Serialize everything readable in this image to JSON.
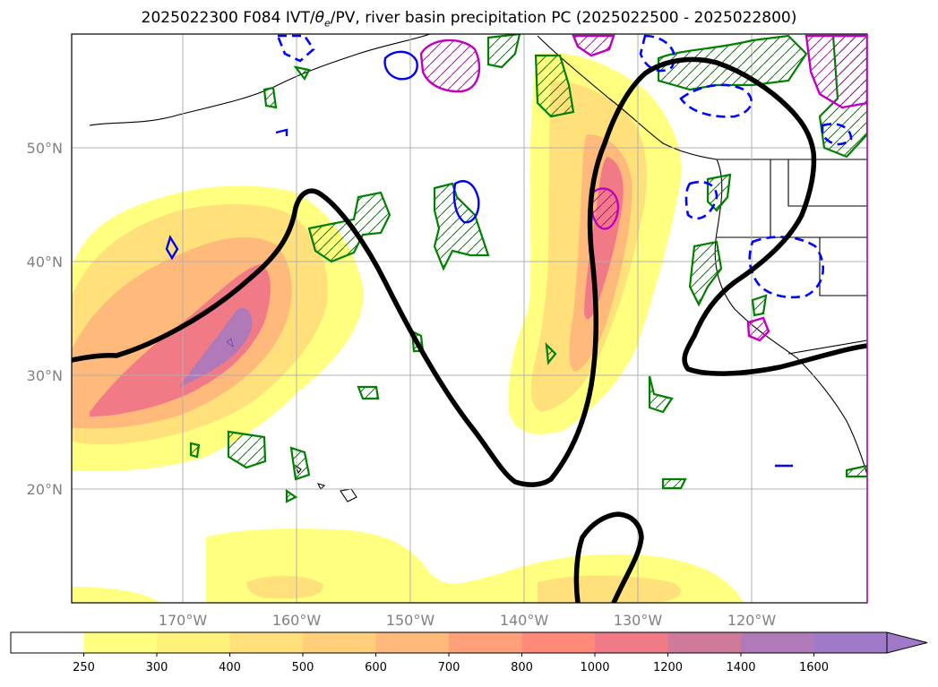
{
  "title": {
    "prefix": "2025022300 F084 IVT/",
    "theta": "θ",
    "theta_sub": "e",
    "suffix": "/PV, river basin precipitation PC (2025022500 - 2025022800)"
  },
  "lat_labels": [
    "50°N",
    "40°N",
    "30°N",
    "20°N"
  ],
  "lon_labels": [
    "170°W",
    "160°W",
    "150°W",
    "140°W",
    "130°W",
    "120°W"
  ],
  "colorbar": {
    "labels": [
      "250",
      "300",
      "400",
      "500",
      "600",
      "700",
      "800",
      "1000",
      "1200",
      "1400",
      "1600"
    ],
    "colors": [
      "#ffffff",
      "#ffff80",
      "#fff27a",
      "#ffe07a",
      "#ffcf7a",
      "#ffb97a",
      "#ffa07a",
      "#ff8a7a",
      "#f07a86",
      "#d07a9a",
      "#b07ab8",
      "#a07ac8"
    ]
  },
  "colors": {
    "ivt_low": "#ffff80",
    "ivt_mid": "#ffcf7a",
    "ivt_high": "#f08080",
    "ivt_max": "#b07ab8",
    "pv_contour": "#000000",
    "precip_green": "#008000",
    "precip_blue": "#0000ff",
    "precip_magenta": "#c000c0"
  },
  "chart_data": {
    "type": "map",
    "projection": "PlateCarree",
    "lon_range": [
      -180,
      -110
    ],
    "lat_range": [
      10,
      60
    ],
    "gridlines": true,
    "colorbar_variable": "IVT",
    "colorbar_extend": "max",
    "colorbar_levels": [
      250,
      300,
      400,
      500,
      600,
      700,
      800,
      1000,
      1200,
      1400,
      1600
    ],
    "features": [
      {
        "name": "atmospheric river (central Pacific)",
        "axis": "from about 175°W 25°N to about 160°W 45°N",
        "max_ivt_bin": "1400-1600"
      },
      {
        "name": "atmospheric river (eastern Pacific)",
        "axis": "from about 137°W 27°N to about 128°W 55°N",
        "max_ivt_bin": "1200-1400"
      },
      {
        "name": "IVT band (south)",
        "location": "near 10-17°N, 160°W-125°W",
        "max_ivt_bin": "300-400"
      }
    ]
  }
}
